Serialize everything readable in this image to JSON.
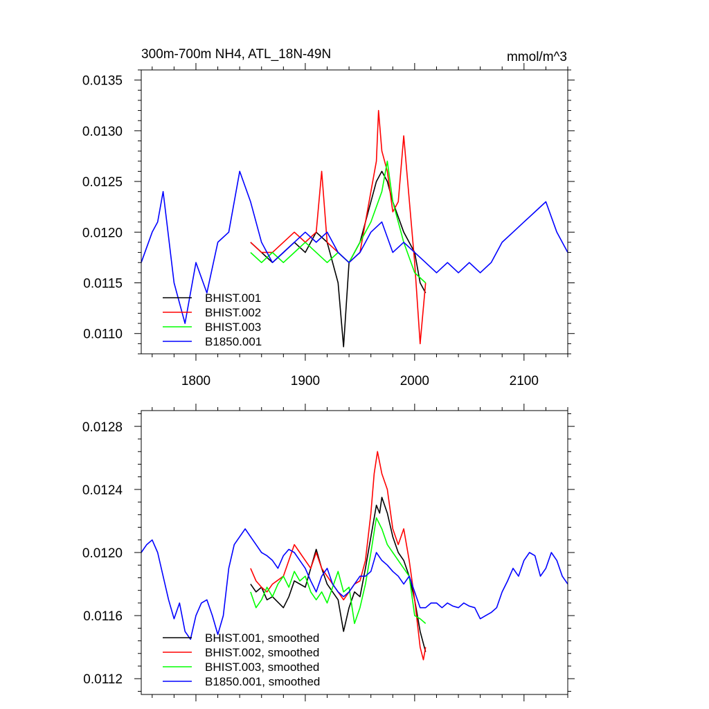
{
  "colors": {
    "BHIST.001": "#000000",
    "BHIST.002": "#ff0000",
    "BHIST.003": "#00ff00",
    "B1850.001": "#0000ff"
  },
  "chart_data": [
    {
      "type": "line",
      "title_left": "300m-700m NH4, ATL_18N-49N",
      "title_right": "mmol/m^3",
      "xlim": [
        1750,
        2140
      ],
      "ylim": [
        0.0108,
        0.0136
      ],
      "xticks": [
        1800,
        1900,
        2000,
        2100
      ],
      "xtick_labels": [
        "1800",
        "1900",
        "2000",
        "2100"
      ],
      "yticks": [
        0.011,
        0.0115,
        0.012,
        0.0125,
        0.013,
        0.0135
      ],
      "ytick_labels": [
        "0.0110",
        "0.0115",
        "0.0120",
        "0.0125",
        "0.0130",
        "0.0135"
      ],
      "legend_position": "bottom-left",
      "grid": false,
      "series": [
        {
          "name": "BHIST.001",
          "x": [
            1850,
            1860,
            1870,
            1880,
            1890,
            1900,
            1910,
            1920,
            1930,
            1935,
            1940,
            1950,
            1960,
            1965,
            1970,
            1975,
            1980,
            1990,
            2000,
            2005,
            2010
          ],
          "y": [
            0.0119,
            0.0118,
            0.0117,
            0.0118,
            0.0119,
            0.0118,
            0.012,
            0.0119,
            0.0115,
            0.01087,
            0.0117,
            0.0119,
            0.0123,
            0.0125,
            0.0126,
            0.0125,
            0.0123,
            0.012,
            0.0118,
            0.0115,
            0.0114
          ]
        },
        {
          "name": "BHIST.002",
          "x": [
            1850,
            1860,
            1870,
            1880,
            1890,
            1900,
            1910,
            1915,
            1920,
            1930,
            1940,
            1950,
            1960,
            1965,
            1967,
            1970,
            1975,
            1980,
            1985,
            1990,
            2000,
            2005,
            2010
          ],
          "y": [
            0.0119,
            0.0118,
            0.0118,
            0.0119,
            0.012,
            0.0119,
            0.012,
            0.0126,
            0.0119,
            0.0118,
            0.0117,
            0.0118,
            0.0124,
            0.0127,
            0.0132,
            0.0128,
            0.0126,
            0.0122,
            0.0123,
            0.01295,
            0.0117,
            0.0109,
            0.0115
          ]
        },
        {
          "name": "BHIST.003",
          "x": [
            1850,
            1860,
            1870,
            1880,
            1890,
            1900,
            1910,
            1920,
            1930,
            1940,
            1950,
            1960,
            1970,
            1975,
            1980,
            1990,
            2000,
            2010
          ],
          "y": [
            0.0118,
            0.0117,
            0.0118,
            0.0117,
            0.0118,
            0.0119,
            0.0118,
            0.0117,
            0.0118,
            0.0117,
            0.0119,
            0.0121,
            0.0124,
            0.0127,
            0.0123,
            0.0119,
            0.0116,
            0.0115
          ]
        },
        {
          "name": "B1850.001",
          "x": [
            1750,
            1760,
            1765,
            1770,
            1780,
            1790,
            1800,
            1810,
            1820,
            1830,
            1840,
            1850,
            1860,
            1870,
            1880,
            1890,
            1900,
            1910,
            1920,
            1930,
            1940,
            1950,
            1960,
            1970,
            1980,
            1990,
            2000,
            2010,
            2020,
            2030,
            2040,
            2050,
            2060,
            2070,
            2080,
            2090,
            2100,
            2110,
            2120,
            2130,
            2140
          ],
          "y": [
            0.0117,
            0.012,
            0.0121,
            0.0124,
            0.0115,
            0.0111,
            0.0117,
            0.0114,
            0.0119,
            0.012,
            0.0126,
            0.0123,
            0.0119,
            0.0117,
            0.0118,
            0.0119,
            0.012,
            0.0119,
            0.012,
            0.0118,
            0.0117,
            0.0118,
            0.012,
            0.0121,
            0.0118,
            0.0119,
            0.0118,
            0.0117,
            0.0116,
            0.0117,
            0.0116,
            0.0117,
            0.0116,
            0.0117,
            0.0119,
            0.012,
            0.0121,
            0.0122,
            0.0123,
            0.012,
            0.0118
          ]
        }
      ]
    },
    {
      "type": "line",
      "xlim": [
        1750,
        2140
      ],
      "ylim": [
        0.0111,
        0.0129
      ],
      "xticks": [
        1800,
        1900,
        2000,
        2100
      ],
      "yticks": [
        0.0112,
        0.0116,
        0.012,
        0.0124,
        0.0128
      ],
      "ytick_labels": [
        "0.0112",
        "0.0116",
        "0.0120",
        "0.0124",
        "0.0128"
      ],
      "legend_position": "bottom-left",
      "grid": false,
      "series": [
        {
          "name": "BHIST.001, smoothed",
          "x": [
            1850,
            1855,
            1860,
            1865,
            1870,
            1880,
            1885,
            1890,
            1900,
            1905,
            1910,
            1915,
            1920,
            1930,
            1935,
            1940,
            1945,
            1950,
            1955,
            1960,
            1965,
            1968,
            1970,
            1975,
            1980,
            1985,
            1990,
            1995,
            2000,
            2005,
            2010
          ],
          "y": [
            0.0118,
            0.01175,
            0.01178,
            0.0117,
            0.01172,
            0.01165,
            0.01172,
            0.01182,
            0.01178,
            0.0119,
            0.01202,
            0.0119,
            0.0118,
            0.0117,
            0.0115,
            0.01165,
            0.01175,
            0.01172,
            0.0119,
            0.0121,
            0.0123,
            0.01225,
            0.01235,
            0.01225,
            0.0121,
            0.012,
            0.01195,
            0.01185,
            0.0117,
            0.0115,
            0.01137
          ]
        },
        {
          "name": "BHIST.002, smoothed",
          "x": [
            1850,
            1855,
            1860,
            1865,
            1870,
            1880,
            1885,
            1890,
            1895,
            1900,
            1905,
            1910,
            1915,
            1920,
            1925,
            1930,
            1935,
            1940,
            1945,
            1950,
            1955,
            1960,
            1963,
            1966,
            1970,
            1975,
            1980,
            1985,
            1990,
            1995,
            2000,
            2005,
            2008,
            2010
          ],
          "y": [
            0.0119,
            0.01182,
            0.01178,
            0.01175,
            0.0118,
            0.01185,
            0.01195,
            0.01205,
            0.012,
            0.01195,
            0.0119,
            0.012,
            0.0119,
            0.01185,
            0.0118,
            0.01175,
            0.0117,
            0.01175,
            0.0118,
            0.01182,
            0.01195,
            0.01225,
            0.0125,
            0.01264,
            0.0125,
            0.0124,
            0.01215,
            0.01205,
            0.01215,
            0.01195,
            0.0117,
            0.0114,
            0.01132,
            0.0114
          ]
        },
        {
          "name": "BHIST.003, smoothed",
          "x": [
            1850,
            1855,
            1860,
            1865,
            1870,
            1875,
            1880,
            1885,
            1890,
            1895,
            1900,
            1905,
            1910,
            1915,
            1920,
            1925,
            1930,
            1935,
            1940,
            1945,
            1950,
            1955,
            1960,
            1965,
            1970,
            1975,
            1980,
            1985,
            1990,
            1995,
            2000,
            2005,
            2010
          ],
          "y": [
            0.01175,
            0.01165,
            0.0117,
            0.01178,
            0.01172,
            0.0118,
            0.01185,
            0.01178,
            0.01188,
            0.01182,
            0.01185,
            0.01175,
            0.0117,
            0.01175,
            0.01168,
            0.01178,
            0.01188,
            0.01175,
            0.01178,
            0.01155,
            0.01165,
            0.0118,
            0.012,
            0.01222,
            0.01215,
            0.01205,
            0.012,
            0.01195,
            0.0119,
            0.01185,
            0.0116,
            0.01158,
            0.01155
          ]
        },
        {
          "name": "B1850.001, smoothed",
          "x": [
            1750,
            1755,
            1760,
            1765,
            1770,
            1775,
            1780,
            1785,
            1790,
            1795,
            1800,
            1805,
            1810,
            1815,
            1820,
            1825,
            1830,
            1835,
            1840,
            1845,
            1850,
            1855,
            1860,
            1865,
            1870,
            1875,
            1880,
            1885,
            1890,
            1895,
            1900,
            1905,
            1910,
            1915,
            1920,
            1925,
            1930,
            1935,
            1940,
            1945,
            1950,
            1955,
            1960,
            1965,
            1970,
            1975,
            1980,
            1985,
            1990,
            1995,
            2000,
            2005,
            2010,
            2015,
            2020,
            2025,
            2030,
            2035,
            2040,
            2045,
            2050,
            2055,
            2060,
            2065,
            2070,
            2075,
            2080,
            2085,
            2090,
            2095,
            2100,
            2105,
            2110,
            2115,
            2120,
            2125,
            2130,
            2135,
            2140
          ],
          "y": [
            0.012,
            0.01205,
            0.01208,
            0.012,
            0.01185,
            0.0117,
            0.01158,
            0.01168,
            0.0115,
            0.01145,
            0.0116,
            0.01168,
            0.0117,
            0.0116,
            0.01148,
            0.0116,
            0.0119,
            0.01205,
            0.0121,
            0.01215,
            0.0121,
            0.01205,
            0.012,
            0.01198,
            0.01195,
            0.0119,
            0.01198,
            0.01202,
            0.012,
            0.01195,
            0.0119,
            0.01182,
            0.01175,
            0.01185,
            0.0119,
            0.0118,
            0.01175,
            0.01172,
            0.01175,
            0.0118,
            0.01185,
            0.01185,
            0.01188,
            0.012,
            0.01195,
            0.01192,
            0.01188,
            0.01185,
            0.0118,
            0.01185,
            0.01175,
            0.01165,
            0.01165,
            0.01168,
            0.01168,
            0.01165,
            0.01168,
            0.01166,
            0.01165,
            0.01168,
            0.01166,
            0.01165,
            0.01158,
            0.0116,
            0.01162,
            0.01165,
            0.01175,
            0.01182,
            0.0119,
            0.01185,
            0.01195,
            0.012,
            0.01198,
            0.01185,
            0.0119,
            0.012,
            0.01195,
            0.01185,
            0.0118
          ]
        }
      ]
    }
  ]
}
